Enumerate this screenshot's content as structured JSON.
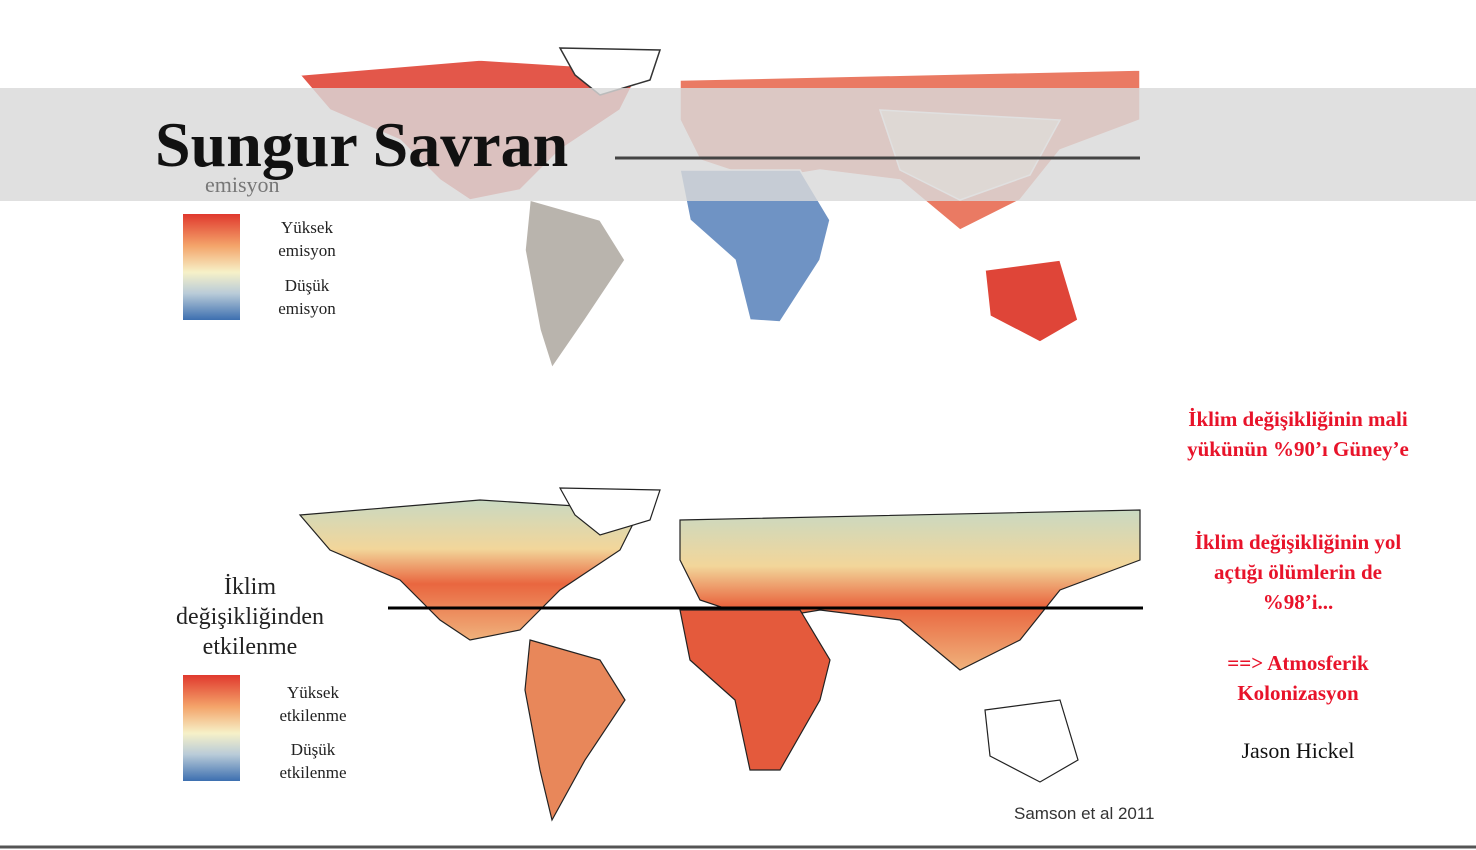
{
  "header": {
    "title": "Sungur Savran"
  },
  "emission_map": {
    "caption": "emisyon",
    "legend": {
      "high": [
        "Yüksek",
        "emisyon"
      ],
      "low": [
        "Düşük",
        "emisyon"
      ]
    }
  },
  "impact_map": {
    "caption": "İklim değişikliğinden etkilenme",
    "legend": {
      "high": [
        "Yüksek",
        "etkilenme"
      ],
      "low": [
        "Düşük",
        "etkilenme"
      ]
    },
    "source": "Samson et al 2011"
  },
  "notes": {
    "burden": [
      "İklim değişikliğinin mali",
      "yükünün %90’ı Güney’e"
    ],
    "deaths": [
      "İklim değişikliğinin yol",
      "açtığı  ölümlerin de",
      "%98’i..."
    ],
    "conclusion": [
      "==> Atmosferik",
      "Kolonizasyon"
    ],
    "author": "Jason Hickel"
  }
}
